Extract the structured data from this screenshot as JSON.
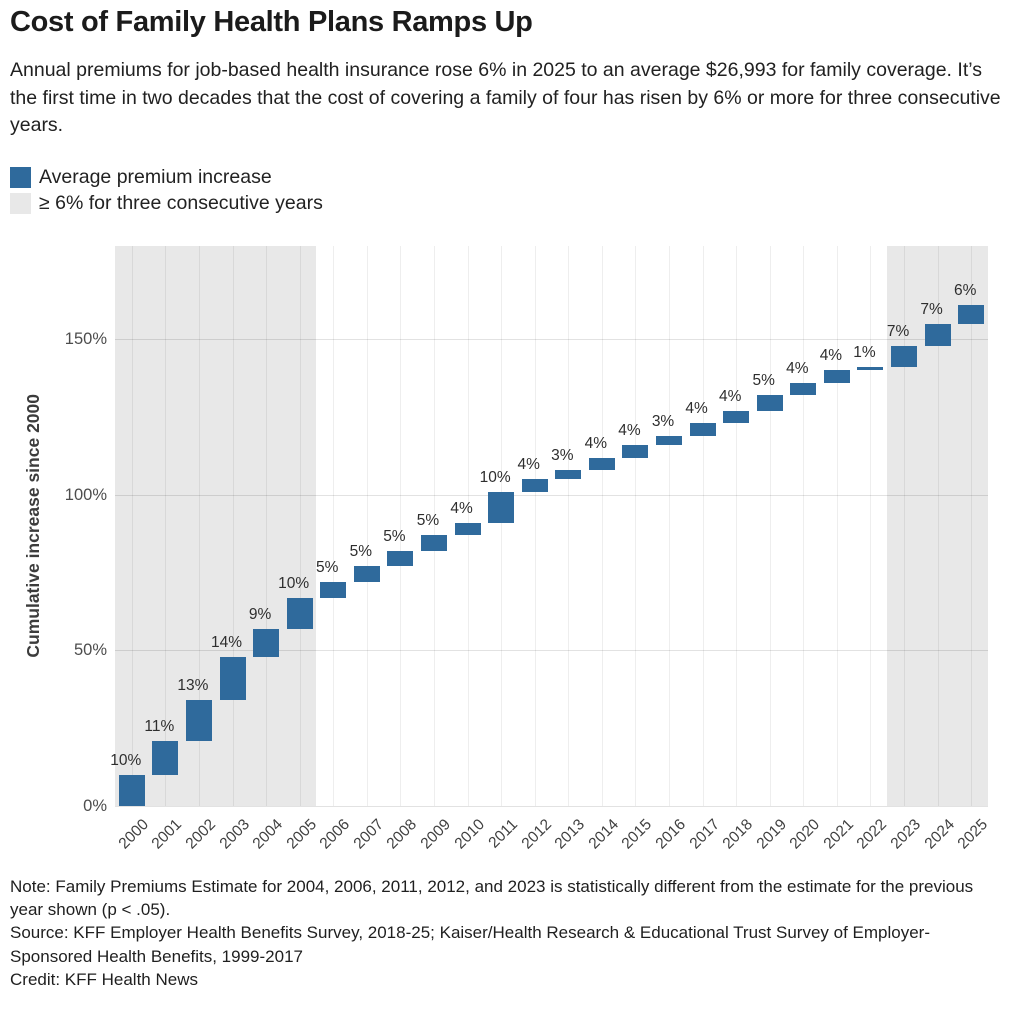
{
  "header": {
    "title": "Cost of Family Health Plans Ramps Up",
    "subtitle": "Annual premiums for job-based health insurance rose 6% in 2025 to an average $26,993 for family coverage. It’s the first time in two decades that the cost of covering a family of four has risen by 6% or more for three consecutive years."
  },
  "legend": {
    "items": [
      {
        "label": "Average premium increase",
        "color": "#2f6a9c"
      },
      {
        "label": "≥ 6% for three consecutive years",
        "color": "#e8e8e8"
      }
    ]
  },
  "chart_data": {
    "type": "bar",
    "subtype": "waterfall",
    "title": "Cost of Family Health Plans Ramps Up",
    "xlabel": "",
    "ylabel": "Cumulative increase since 2000",
    "ylim": [
      0,
      180
    ],
    "yticks": [
      0,
      50,
      100,
      150
    ],
    "ytick_labels": [
      "0%",
      "50%",
      "100%",
      "150%"
    ],
    "grid": true,
    "bar_color": "#2f6a9c",
    "shade_color": "#e8e8e8",
    "categories": [
      "2000",
      "2001",
      "2002",
      "2003",
      "2004",
      "2005",
      "2006",
      "2007",
      "2008",
      "2009",
      "2010",
      "2011",
      "2012",
      "2013",
      "2014",
      "2015",
      "2016",
      "2017",
      "2018",
      "2019",
      "2020",
      "2021",
      "2022",
      "2023",
      "2024",
      "2025"
    ],
    "values": [
      10,
      11,
      13,
      14,
      9,
      10,
      5,
      5,
      5,
      5,
      4,
      10,
      4,
      3,
      4,
      4,
      3,
      4,
      4,
      5,
      4,
      4,
      1,
      7,
      7,
      6
    ],
    "bar_labels": [
      "10%",
      "11%",
      "13%",
      "14%",
      "9%",
      "10%",
      "5%",
      "5%",
      "5%",
      "5%",
      "4%",
      "10%",
      "4%",
      "3%",
      "4%",
      "4%",
      "3%",
      "4%",
      "4%",
      "5%",
      "4%",
      "4%",
      "1%",
      "7%",
      "7%",
      "6%"
    ],
    "cumulative_end": [
      10,
      21,
      34,
      48,
      57,
      67,
      72,
      77,
      82,
      87,
      91,
      101,
      105,
      108,
      112,
      116,
      119,
      123,
      127,
      132,
      136,
      140,
      141,
      148,
      155,
      161
    ],
    "shaded_regions": [
      {
        "start_year": "2000",
        "end_year": "2005",
        "meaning": "≥ 6% for three consecutive years"
      },
      {
        "start_year": "2023",
        "end_year": "2025",
        "meaning": "≥ 6% for three consecutive years"
      }
    ],
    "legend_position": "top-left"
  },
  "footer": {
    "note": "Note: Family Premiums Estimate for 2004, 2006, 2011, 2012, and 2023 is statistically different from the estimate for the previous year shown (p < .05).",
    "source": "Source: KFF Employer Health Benefits Survey, 2018-25; Kaiser/Health Research & Educational Trust Survey of Employer-Sponsored Health Benefits, 1999-2017",
    "credit": "Credit: KFF Health News"
  }
}
